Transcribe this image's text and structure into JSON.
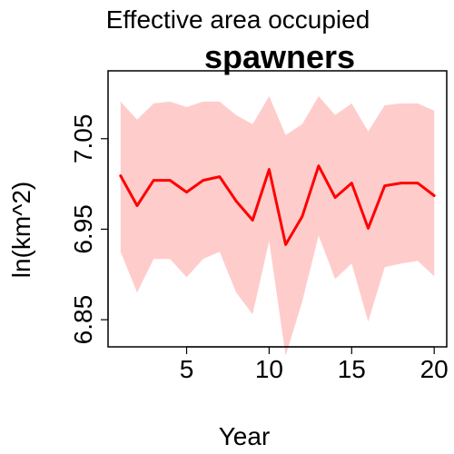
{
  "chart_data": {
    "type": "line",
    "title": "Effective area occupied",
    "subtitle": "spawners",
    "xlabel": "Year",
    "ylabel": "ln(km^2)",
    "xlim": [
      0.24,
      20.76
    ],
    "ylim": [
      6.82,
      7.125
    ],
    "x_ticks": [
      5,
      10,
      15,
      20
    ],
    "x_tick_labels": [
      "5",
      "10",
      "15",
      "20"
    ],
    "y_ticks": [
      6.85,
      6.95,
      7.05
    ],
    "y_tick_labels": [
      "6.85",
      "6.95",
      "7.05"
    ],
    "grid": false,
    "series": [
      {
        "x": [
          1,
          2,
          3,
          4,
          5,
          6,
          7,
          8,
          9,
          10,
          11,
          12,
          13,
          14,
          15,
          16,
          17,
          18,
          19,
          20
        ],
        "values": [
          7.009,
          6.976,
          7.004,
          7.004,
          6.991,
          7.004,
          7.008,
          6.981,
          6.96,
          7.016,
          6.933,
          6.964,
          7.02,
          6.985,
          7.001,
          6.951,
          6.998,
          7.001,
          7.001,
          6.987
        ],
        "lower": [
          6.925,
          6.88,
          6.917,
          6.917,
          6.897,
          6.917,
          6.925,
          6.88,
          6.856,
          6.937,
          6.81,
          6.87,
          6.943,
          6.895,
          6.912,
          6.848,
          6.908,
          6.912,
          6.915,
          6.898
        ],
        "upper": [
          7.091,
          7.071,
          7.089,
          7.091,
          7.085,
          7.091,
          7.091,
          7.076,
          7.066,
          7.097,
          7.054,
          7.066,
          7.097,
          7.076,
          7.089,
          7.058,
          7.087,
          7.089,
          7.089,
          7.081
        ]
      }
    ],
    "colors": {
      "line": "#ff0000",
      "band": "#ffcccc",
      "axis": "#000000"
    }
  }
}
